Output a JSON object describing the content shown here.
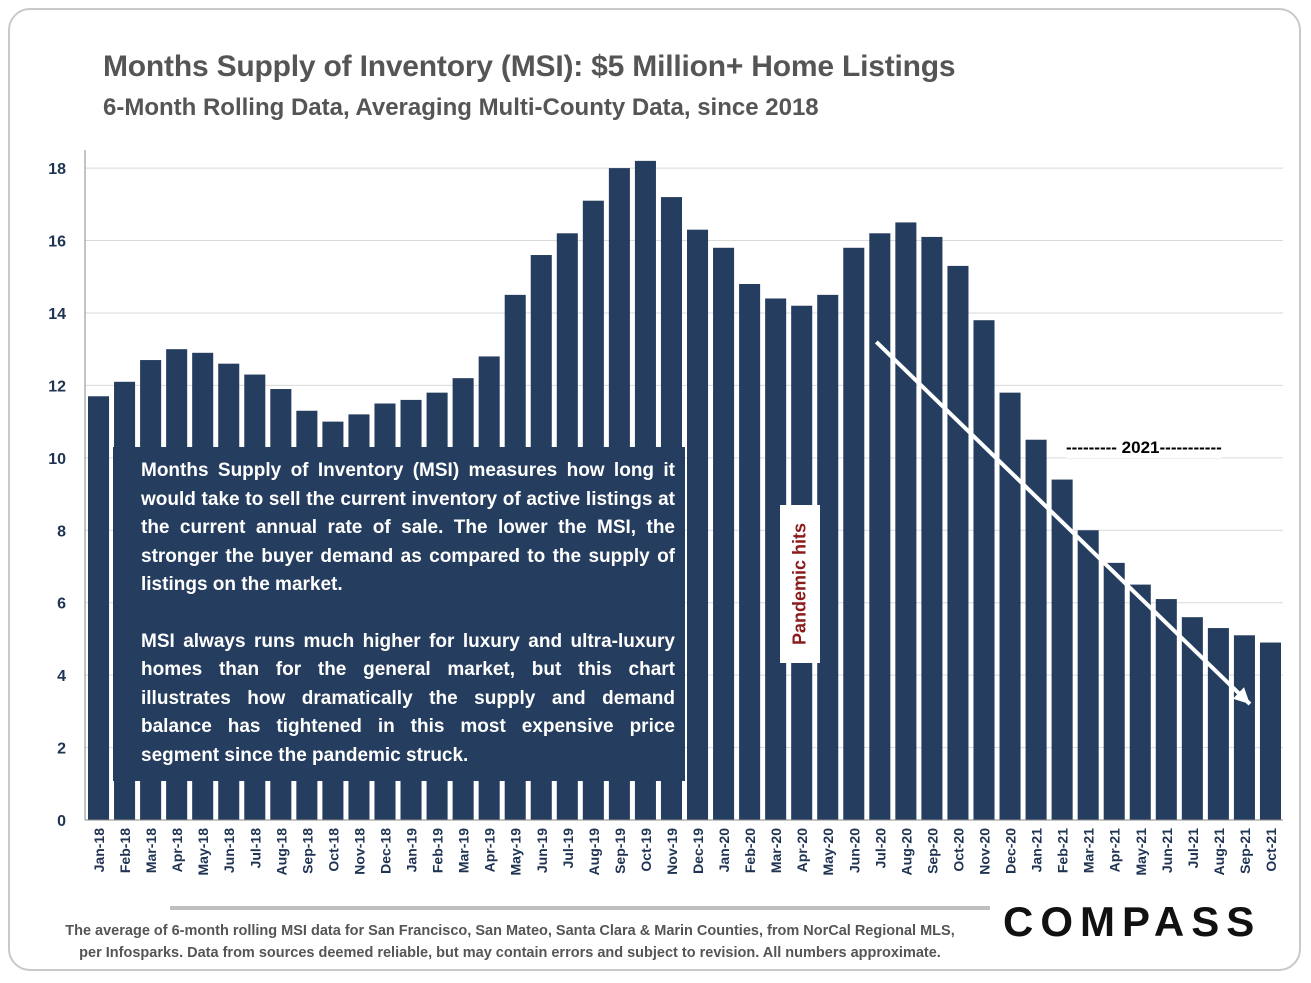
{
  "header": {
    "title": "Months Supply of Inventory (MSI): $5 Million+ Home Listings",
    "subtitle": "6-Month Rolling Data, Averaging Multi-County Data, since 2018"
  },
  "annotations": {
    "paragraph1": "Months Supply of Inventory (MSI) measures how long it would take to sell the current inventory of active listings at the current annual rate of sale. The lower the MSI, the stronger the buyer demand as compared to the supply of listings on the market.",
    "paragraph2": "MSI always runs much higher for luxury and ultra-luxury homes than for the general market, but this chart illustrates how dramatically the supply and demand balance has tightened in this most expensive price segment since the pandemic struck.",
    "pandemic_label": "Pandemic hits",
    "year_label": "--------- 2021-----------"
  },
  "footer": {
    "footnote_line1": "The average of 6-month rolling MSI data for San Francisco, San Mateo, Santa Clara & Marin Counties, from NorCal Regional MLS,",
    "footnote_line2": "per Infosparks. Data from sources deemed reliable, but may contain errors and subject to revision. All numbers approximate.",
    "logo": "COMPASS"
  },
  "colors": {
    "bar": "#253d5e",
    "grid": "#d9d9d9",
    "axis_text": "#1f3352",
    "arrow": "#ffffff",
    "pandemic_text": "#8b1a1a"
  },
  "chart_data": {
    "type": "bar",
    "categories": [
      "Jan-18",
      "Feb-18",
      "Mar-18",
      "Apr-18",
      "May-18",
      "Jun-18",
      "Jul-18",
      "Aug-18",
      "Sep-18",
      "Oct-18",
      "Nov-18",
      "Dec-18",
      "Jan-19",
      "Feb-19",
      "Mar-19",
      "Apr-19",
      "May-19",
      "Jun-19",
      "Jul-19",
      "Aug-19",
      "Sep-19",
      "Oct-19",
      "Nov-19",
      "Dec-19",
      "Jan-20",
      "Feb-20",
      "Mar-20",
      "Apr-20",
      "May-20",
      "Jun-20",
      "Jul-20",
      "Aug-20",
      "Sep-20",
      "Oct-20",
      "Nov-20",
      "Dec-20",
      "Jan-21",
      "Feb-21",
      "Mar-21",
      "Apr-21",
      "May-21",
      "Jun-21",
      "Jul-21",
      "Aug-21",
      "Sep-21",
      "Oct-21"
    ],
    "values": [
      11.7,
      12.1,
      12.7,
      13.0,
      12.9,
      12.6,
      12.3,
      11.9,
      11.3,
      11.0,
      11.2,
      11.5,
      11.6,
      11.8,
      12.2,
      12.8,
      14.5,
      15.6,
      16.2,
      17.1,
      18.0,
      18.2,
      17.2,
      16.3,
      15.8,
      14.8,
      14.4,
      14.2,
      14.5,
      15.8,
      16.2,
      16.5,
      16.1,
      15.3,
      13.8,
      11.8,
      10.5,
      9.4,
      8.0,
      7.1,
      6.5,
      6.1,
      5.6,
      5.3,
      5.1,
      4.9
    ],
    "ylim": [
      0,
      18.5
    ],
    "yticks": [
      0,
      2,
      4,
      6,
      8,
      10,
      12,
      14,
      16,
      18
    ],
    "grid": true,
    "trend_arrow": {
      "from": [
        "Jul-20",
        13.2
      ],
      "to": [
        "Sep-21",
        3.2
      ]
    }
  }
}
